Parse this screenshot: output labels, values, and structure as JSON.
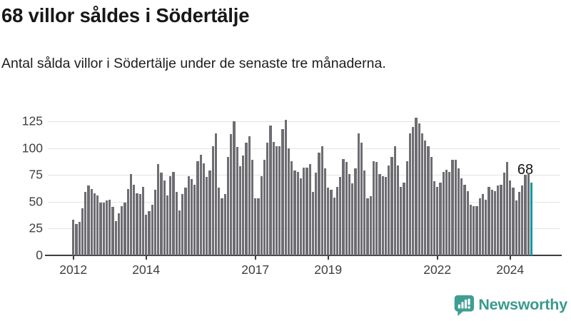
{
  "header": {
    "title": "68 villor såldes i Södertälje",
    "subtitle": "Antal sålda villor i Södertälje under de senaste tre månaderna."
  },
  "chart_data": {
    "type": "bar",
    "x_unit": "month",
    "x_start": "2012-01",
    "x_end": "2024-08",
    "values": [
      33,
      29,
      31,
      44,
      59,
      65,
      62,
      58,
      56,
      49,
      49,
      51,
      52,
      45,
      32,
      39,
      46,
      49,
      62,
      76,
      66,
      58,
      57,
      64,
      38,
      41,
      47,
      61,
      85,
      77,
      70,
      56,
      74,
      78,
      59,
      42,
      57,
      63,
      74,
      71,
      66,
      88,
      94,
      86,
      73,
      79,
      102,
      114,
      63,
      53,
      57,
      92,
      113,
      125,
      101,
      83,
      93,
      105,
      111,
      89,
      53,
      53,
      74,
      89,
      105,
      121,
      106,
      102,
      102,
      118,
      126,
      100,
      88,
      79,
      78,
      72,
      82,
      82,
      85,
      59,
      77,
      96,
      102,
      81,
      63,
      61,
      54,
      64,
      73,
      90,
      87,
      76,
      67,
      81,
      114,
      105,
      79,
      53,
      55,
      88,
      87,
      76,
      74,
      73,
      84,
      92,
      102,
      84,
      64,
      68,
      88,
      114,
      120,
      128,
      123,
      114,
      107,
      102,
      92,
      69,
      64,
      68,
      78,
      80,
      78,
      89,
      89,
      81,
      72,
      66,
      60,
      47,
      46,
      46,
      53,
      57,
      52,
      64,
      61,
      60,
      65,
      66,
      77,
      87,
      70,
      63,
      51,
      59,
      65,
      75,
      77,
      68
    ],
    "yticks": [
      0,
      25,
      50,
      75,
      100,
      125
    ],
    "ylim": [
      0,
      135
    ],
    "xticks": [
      {
        "label": "2012",
        "month_index": 0
      },
      {
        "label": "2014",
        "month_index": 24
      },
      {
        "label": "2017",
        "month_index": 60
      },
      {
        "label": "2019",
        "month_index": 84
      },
      {
        "label": "2022",
        "month_index": 120
      },
      {
        "label": "2024",
        "month_index": 144
      }
    ],
    "annotation": {
      "text": "68"
    },
    "highlight_last_bar": true,
    "bar_color": "#6d6d72",
    "highlight_color": "#12999e",
    "grid": "horizontal",
    "legend": "none"
  },
  "footer": {
    "brand": "Newsworthy",
    "brand_color": "#3a9a8d",
    "icon_color": "#3f9e92"
  }
}
